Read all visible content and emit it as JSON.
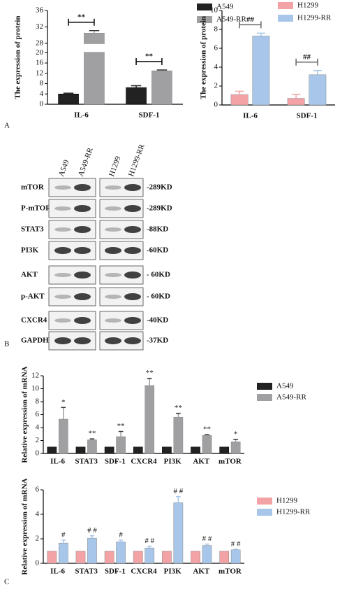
{
  "panel_labels": [
    "A",
    "B",
    "C"
  ],
  "chart_data": [
    {
      "type": "bar",
      "ylabel": "The expression of protein",
      "categories": [
        "IL-6",
        "SDF-1"
      ],
      "series": [
        {
          "name": "A549",
          "color": "#222222",
          "values": [
            4,
            6.5
          ],
          "errors": [
            0.3,
            0.7
          ]
        },
        {
          "name": "A549-RR",
          "color": "#a0a0a2",
          "values": [
            30.5,
            13
          ],
          "errors": [
            0.6,
            0.3
          ]
        }
      ],
      "annotations": [
        "**",
        "**"
      ],
      "annotation_style": "bracket",
      "ylim": [
        0,
        36
      ],
      "ybreak": [
        20,
        28
      ],
      "yticks": [
        0,
        4,
        8,
        12,
        16,
        20,
        28,
        32,
        36
      ],
      "legend": "right"
    },
    {
      "type": "bar",
      "ylabel": "The expression of protein",
      "categories": [
        "IL-6",
        "SDF-1"
      ],
      "series": [
        {
          "name": "H1299",
          "color": "#f3a3a6",
          "values": [
            1.1,
            0.7
          ],
          "errors": [
            0.35,
            0.4
          ]
        },
        {
          "name": "H1299-RR",
          "color": "#a7c6ea",
          "values": [
            7.3,
            3.2
          ],
          "errors": [
            0.3,
            0.45
          ]
        }
      ],
      "annotations": [
        "##",
        "##"
      ],
      "annotation_style": "bracket",
      "ylim": [
        0,
        10
      ],
      "yticks": [
        0,
        2,
        4,
        6,
        8,
        10
      ],
      "legend": "right"
    },
    {
      "type": "bar",
      "ylabel": "Relative expression of mRNA",
      "categories": [
        "IL-6",
        "STAT3",
        "SDF-1",
        "CXCR4",
        "PI3K",
        "AKT",
        "mTOR"
      ],
      "series": [
        {
          "name": "A549",
          "color": "#222222",
          "values": [
            1,
            1,
            1,
            1,
            1,
            1,
            1
          ]
        },
        {
          "name": "A549-RR",
          "color": "#a0a0a2",
          "values": [
            5.3,
            2.1,
            2.6,
            10.5,
            5.6,
            2.8,
            1.8
          ],
          "errors": [
            1.8,
            0.15,
            0.8,
            1.1,
            0.6,
            0.1,
            0.35
          ]
        }
      ],
      "annotations": [
        "*",
        "**",
        "**",
        "**",
        "**",
        "**",
        "*"
      ],
      "annotation_style": "above",
      "ylim": [
        0,
        12
      ],
      "yticks": [
        0,
        2,
        4,
        6,
        8,
        10,
        12
      ],
      "legend": "right"
    },
    {
      "type": "bar",
      "ylabel": "Relative expression of mRNA",
      "categories": [
        "IL-6",
        "STAT3",
        "SDF-1",
        "CXCR4",
        "PI3K",
        "AKT",
        "mTOR"
      ],
      "series": [
        {
          "name": "H1299",
          "color": "#f3a3a6",
          "values": [
            1,
            1,
            1,
            1,
            1,
            1,
            1
          ]
        },
        {
          "name": "H1299-RR",
          "color": "#a7c6ea",
          "values": [
            1.65,
            2.05,
            1.75,
            1.25,
            4.95,
            1.45,
            1.1
          ],
          "errors": [
            0.25,
            0.2,
            0.15,
            0.15,
            0.5,
            0.12,
            0.05
          ]
        }
      ],
      "annotations": [
        "#",
        "# #",
        "#",
        "# #",
        "# #",
        "# #",
        "# #"
      ],
      "annotation_style": "above",
      "ylim": [
        0,
        6
      ],
      "yticks": [
        0,
        2,
        4,
        6
      ],
      "legend": "right"
    }
  ],
  "blot": {
    "lanes": [
      "A549",
      "A549-RR",
      "H1299",
      "H1299-RR"
    ],
    "rows": [
      {
        "name": "mTOR",
        "size": "-289KD"
      },
      {
        "name": "P-mTOR",
        "size": "-289KD"
      },
      {
        "name": "STAT3",
        "size": "-88KD"
      },
      {
        "name": "PI3K",
        "size": "-60KD"
      },
      {
        "name": "AKT",
        "size": "- 60KD"
      },
      {
        "name": "p-AKT",
        "size": "- 60KD"
      },
      {
        "name": "CXCR4",
        "size": "-40KD"
      },
      {
        "name": "GAPDH",
        "size": "-37KD"
      }
    ]
  }
}
